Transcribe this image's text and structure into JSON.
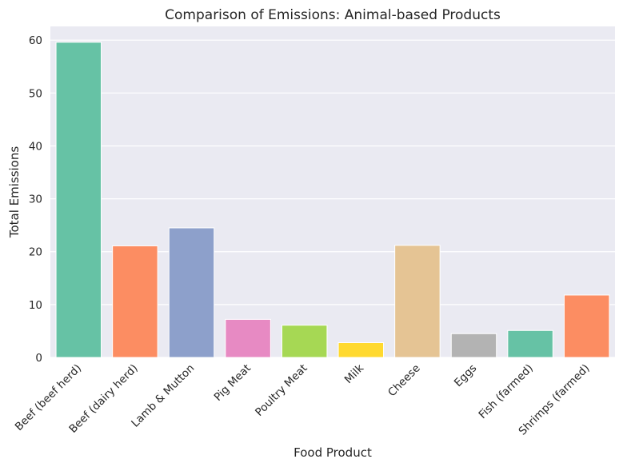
{
  "chart_data": {
    "type": "bar",
    "title": "Comparison of Emissions: Animal-based Products",
    "xlabel": "Food Product",
    "ylabel": "Total Emissions",
    "categories": [
      "Beef (beef herd)",
      "Beef (dairy herd)",
      "Lamb & Mutton",
      "Pig Meat",
      "Poultry Meat",
      "Milk",
      "Cheese",
      "Eggs",
      "Fish (farmed)",
      "Shrimps (farmed)"
    ],
    "values": [
      59.6,
      21.1,
      24.5,
      7.2,
      6.1,
      2.8,
      21.2,
      4.5,
      5.1,
      11.8
    ],
    "colors": [
      "#66c2a5",
      "#fc8d62",
      "#8da0cb",
      "#e78ac3",
      "#a6d854",
      "#ffd92f",
      "#e5c494",
      "#b3b3b3",
      "#66c2a5",
      "#fc8d62"
    ],
    "ylim": [
      0,
      62.6
    ],
    "yticks": [
      0,
      10,
      20,
      30,
      40,
      50,
      60
    ],
    "grid": true,
    "background": "#eaeaf2"
  }
}
